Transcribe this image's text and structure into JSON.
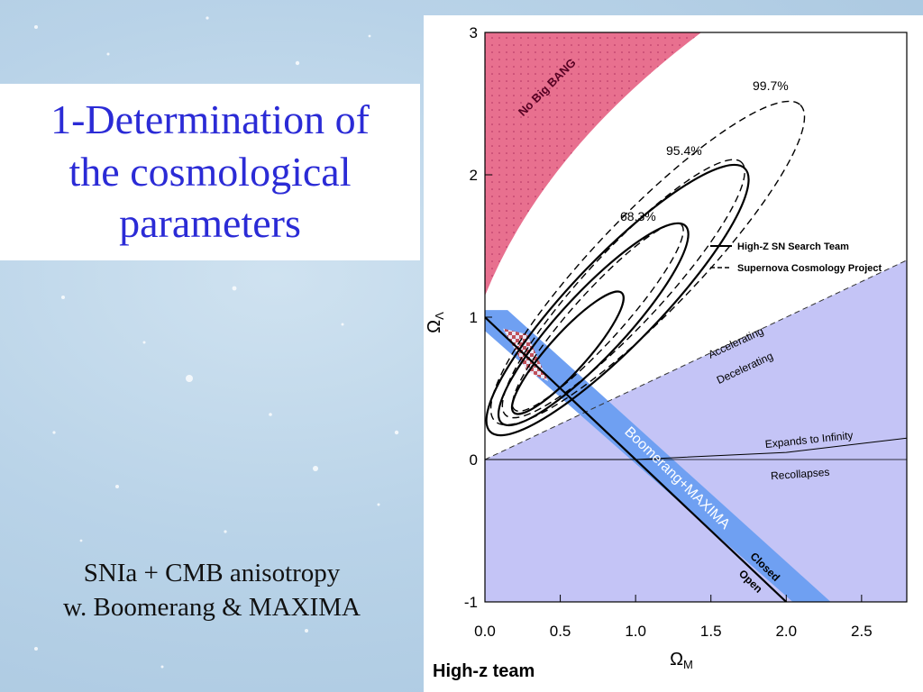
{
  "slide": {
    "title": "1-Determination of\nthe cosmological\nparameters",
    "subtitle_line1": "SNIa + CMB anisotropy",
    "subtitle_line2": "w. Boomerang & MAXIMA",
    "credit": "High-z team"
  },
  "chart_data": {
    "type": "contour",
    "xlabel": "Ω_M",
    "ylabel": "Ω_Λ",
    "xlim": [
      0.0,
      2.8
    ],
    "ylim": [
      -1,
      3
    ],
    "xticks": [
      "0.0",
      "0.5",
      "1.0",
      "1.5",
      "2.0",
      "2.5"
    ],
    "yticks": [
      "-1",
      "0",
      "1",
      "2",
      "3"
    ],
    "grid": false,
    "legend_position": "right",
    "legend": [
      {
        "label": "High-Z SN Search Team",
        "style": "solid"
      },
      {
        "label": "Supernova Cosmology Project",
        "style": "dashed"
      }
    ],
    "confidence_levels": [
      "68.3%",
      "95.4%",
      "99.7%"
    ],
    "regions": {
      "no_big_bang": "No Big BANG",
      "accelerating": "Accelerating",
      "decelerating": "Decelerating",
      "expands": "Expands to Infinity",
      "recollapses": "Recollapses",
      "cmb_band": "Boomerang+MAXIMA",
      "closed": "Closed",
      "open": "Open"
    },
    "lines": {
      "accel_decel": [
        [
          0.0,
          0.0
        ],
        [
          2.8,
          1.4
        ]
      ],
      "flat_universe": [
        [
          0.0,
          1.0
        ],
        [
          2.0,
          -1.0
        ]
      ],
      "expands_boundary": [
        [
          0.0,
          0.0
        ],
        [
          1.0,
          0.0
        ],
        [
          2.0,
          0.05
        ],
        [
          2.8,
          0.15
        ]
      ]
    },
    "colors": {
      "no_big_bang": "#e8708f",
      "decelerating": "#c4c4f6",
      "cmb_band": "#6fa0f2",
      "overlap": "#c0505a",
      "title": "#2b2bd6"
    }
  }
}
